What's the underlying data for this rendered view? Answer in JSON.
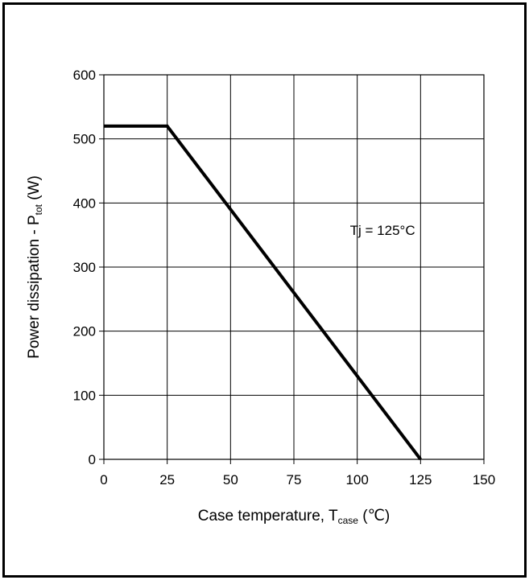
{
  "chart_data": {
    "type": "line",
    "x": [
      0,
      25,
      125
    ],
    "series": [
      {
        "values": [
          520,
          520,
          0
        ]
      }
    ],
    "xlim": [
      0,
      150
    ],
    "ylim": [
      0,
      600
    ],
    "xticks": [
      0,
      25,
      50,
      75,
      100,
      125,
      150
    ],
    "yticks": [
      0,
      100,
      200,
      300,
      400,
      500,
      600
    ],
    "grid": true,
    "xlabel": {
      "prefix": "Case temperature, T",
      "subscript": "case",
      "suffix": " (℃)"
    },
    "ylabel": {
      "prefix": "Power dissipation - P",
      "subscript": "tot",
      "suffix": " (W)"
    },
    "annotation": {
      "text": "Tj = 125°C",
      "x": 110,
      "y": 350
    },
    "colors": {
      "line": "#000000",
      "grid": "#000000",
      "frame": "#000000"
    }
  }
}
